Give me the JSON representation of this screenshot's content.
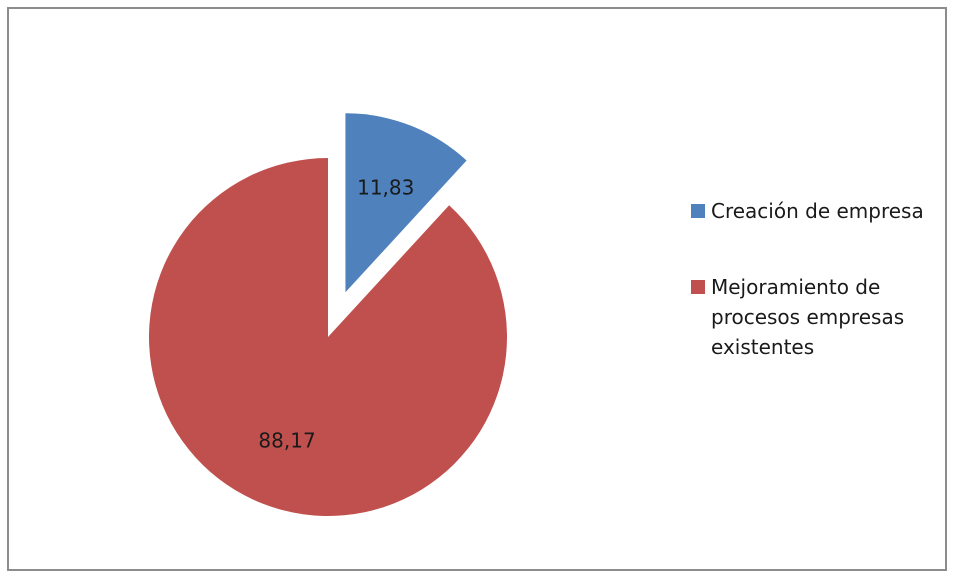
{
  "chart_data": {
    "type": "pie",
    "title": "",
    "slices": [
      {
        "label": "Creación de empresa",
        "value": 11.83,
        "display_value": "11,83",
        "color": "#4f81bd",
        "exploded": true
      },
      {
        "label": "Mejoramiento de procesos empresas existentes",
        "value": 88.17,
        "display_value": "88,17",
        "color": "#c0504d",
        "exploded": false
      }
    ],
    "legend": {
      "placement": "right",
      "entries": [
        {
          "line1": "Creación de empresa",
          "line2": "",
          "line3": ""
        },
        {
          "line1": "Mejoramiento de",
          "line2": "procesos empresas",
          "line3": "existentes"
        }
      ]
    }
  }
}
